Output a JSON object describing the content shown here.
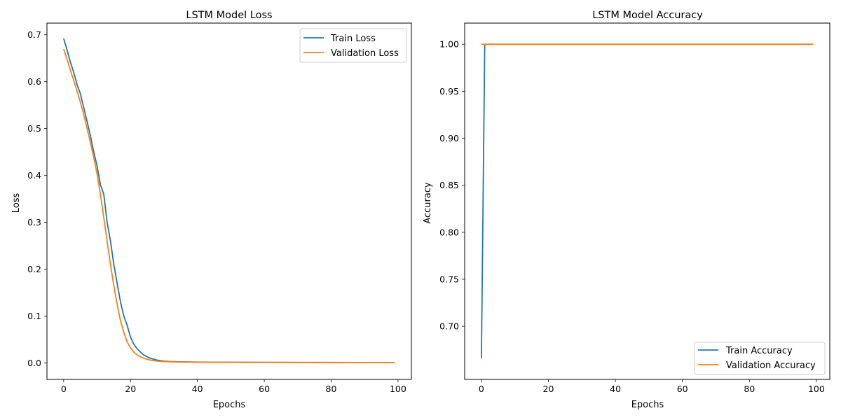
{
  "colors": {
    "train": "#1f77b4",
    "validation": "#ff7f0e"
  },
  "charts": [
    {
      "title": "LSTM Model Loss",
      "xlabel": "Epochs",
      "ylabel": "Loss",
      "legend": [
        "Train Loss",
        "Validation Loss"
      ],
      "xticks": [
        "0",
        "20",
        "40",
        "60",
        "80",
        "100"
      ],
      "yticks": [
        "0.0",
        "0.1",
        "0.2",
        "0.3",
        "0.4",
        "0.5",
        "0.6",
        "0.7"
      ]
    },
    {
      "title": "LSTM Model Accuracy",
      "xlabel": "Epochs",
      "ylabel": "Accuracy",
      "legend": [
        "Train Accuracy",
        "Validation Accuracy"
      ],
      "xticks": [
        "0",
        "20",
        "40",
        "60",
        "80",
        "100"
      ],
      "yticks": [
        "0.70",
        "0.75",
        "0.80",
        "0.85",
        "0.90",
        "0.95",
        "1.00"
      ]
    }
  ],
  "chart_data": [
    {
      "type": "line",
      "title": "LSTM Model Loss",
      "xlabel": "Epochs",
      "ylabel": "Loss",
      "xlim": [
        -5,
        104
      ],
      "ylim": [
        -0.035,
        0.725
      ],
      "legend_position": "upper right",
      "grid": false,
      "series": [
        {
          "name": "Train Loss",
          "x": [
            0,
            1,
            2,
            3,
            4,
            5,
            6,
            7,
            8,
            9,
            10,
            11,
            12,
            13,
            14,
            15,
            16,
            17,
            18,
            19,
            20,
            21,
            22,
            23,
            24,
            25,
            26,
            27,
            28,
            29,
            30,
            32,
            35,
            40,
            45,
            50,
            60,
            70,
            80,
            90,
            99
          ],
          "values": [
            0.692,
            0.668,
            0.642,
            0.62,
            0.594,
            0.574,
            0.545,
            0.515,
            0.485,
            0.45,
            0.42,
            0.38,
            0.36,
            0.3,
            0.26,
            0.21,
            0.17,
            0.13,
            0.1,
            0.08,
            0.055,
            0.04,
            0.03,
            0.023,
            0.017,
            0.013,
            0.01,
            0.008,
            0.006,
            0.005,
            0.004,
            0.003,
            0.0025,
            0.002,
            0.0018,
            0.0016,
            0.0014,
            0.0012,
            0.0011,
            0.001,
            0.001
          ]
        },
        {
          "name": "Validation Loss",
          "x": [
            0,
            1,
            2,
            3,
            4,
            5,
            6,
            7,
            8,
            9,
            10,
            11,
            12,
            13,
            14,
            15,
            16,
            17,
            18,
            19,
            20,
            21,
            22,
            23,
            24,
            25,
            26,
            27,
            28,
            29,
            30,
            32,
            35,
            40,
            45,
            50,
            60,
            70,
            80,
            90,
            99
          ],
          "values": [
            0.67,
            0.648,
            0.625,
            0.603,
            0.58,
            0.556,
            0.53,
            0.5,
            0.47,
            0.438,
            0.403,
            0.36,
            0.31,
            0.26,
            0.21,
            0.165,
            0.125,
            0.09,
            0.065,
            0.045,
            0.032,
            0.023,
            0.017,
            0.013,
            0.01,
            0.008,
            0.006,
            0.005,
            0.004,
            0.0035,
            0.003,
            0.0025,
            0.002,
            0.0018,
            0.0015,
            0.0014,
            0.0012,
            0.0011,
            0.001,
            0.001,
            0.001
          ]
        }
      ]
    },
    {
      "type": "line",
      "title": "LSTM Model Accuracy",
      "xlabel": "Epochs",
      "ylabel": "Accuracy",
      "xlim": [
        -5,
        104
      ],
      "ylim": [
        0.6435,
        1.0225
      ],
      "legend_position": "lower right",
      "grid": false,
      "series": [
        {
          "name": "Train Accuracy",
          "x": [
            0,
            1,
            99
          ],
          "values": [
            0.666,
            1.0,
            1.0
          ]
        },
        {
          "name": "Validation Accuracy",
          "x": [
            0,
            99
          ],
          "values": [
            1.0,
            1.0
          ]
        }
      ]
    }
  ]
}
